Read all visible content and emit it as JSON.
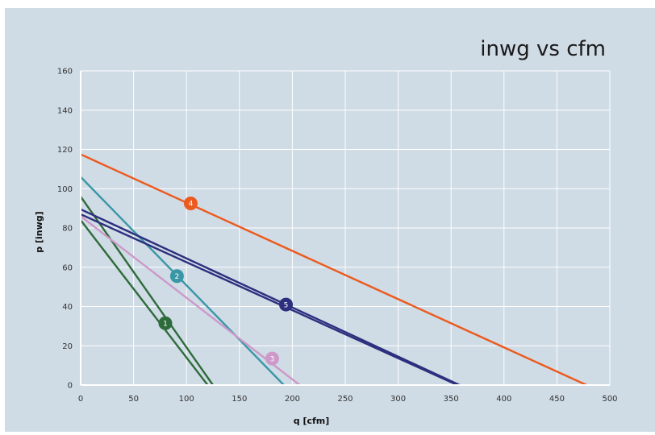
{
  "chart_data": {
    "type": "line",
    "title": "inwg vs cfm",
    "xlabel": "q [cfm]",
    "ylabel": "p [inwg]",
    "xlim": [
      0,
      500
    ],
    "ylim": [
      0,
      160
    ],
    "x_ticks": [
      0,
      50,
      100,
      150,
      200,
      250,
      300,
      350,
      400,
      450,
      500
    ],
    "y_ticks": [
      0,
      20,
      40,
      60,
      80,
      100,
      120,
      140,
      160
    ],
    "grid": true,
    "background": "#cfdbe5",
    "series": [
      {
        "marker": "1",
        "color": "#2e6b3a",
        "lines": [
          [
            [
              0,
              96
            ],
            [
              125,
              0
            ]
          ],
          [
            [
              0,
              84
            ],
            [
              120,
              0
            ]
          ]
        ],
        "marker_point": [
          80,
          31.5
        ]
      },
      {
        "marker": "2",
        "color": "#3a97a8",
        "lines": [
          [
            [
              0,
              106
            ],
            [
              192,
              0
            ]
          ]
        ],
        "marker_point": [
          91,
          55.5
        ]
      },
      {
        "marker": "3",
        "color": "#cc99c9",
        "lines": [
          [
            [
              0,
              86
            ],
            [
              207,
              0
            ]
          ]
        ],
        "marker_point": [
          181,
          13.5
        ]
      },
      {
        "marker": "4",
        "color": "#ec5a1e",
        "lines": [
          [
            [
              0,
              117.5
            ],
            [
              478,
              0
            ]
          ]
        ],
        "marker_point": [
          104,
          92.5
        ]
      },
      {
        "marker": "5",
        "color": "#2d2f7e",
        "lines": [
          [
            [
              0,
              89.5
            ],
            [
              358,
              0
            ]
          ],
          [
            [
              0,
              87
            ],
            [
              356,
              0
            ]
          ]
        ],
        "marker_point": [
          194,
          41
        ]
      }
    ]
  }
}
